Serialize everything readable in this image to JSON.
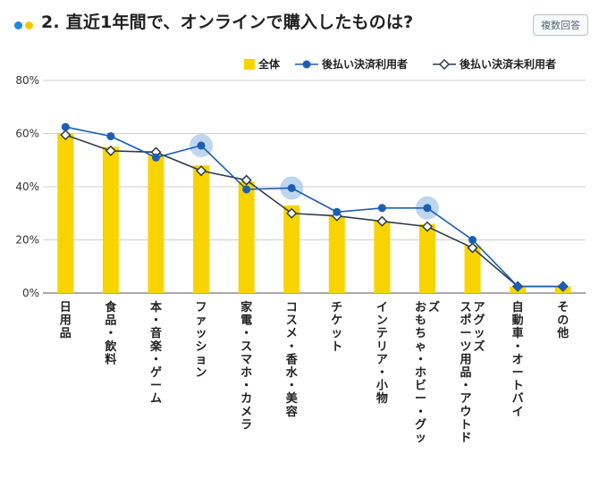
{
  "header": {
    "title": "2. 直近1年間で、オンラインで購入したものは?",
    "badge": "複数回答",
    "dot_colors": [
      "#1a8be0",
      "#f5c900"
    ]
  },
  "chart_data": {
    "type": "bar",
    "categories": [
      "日用品",
      "食品・飲料",
      "本・音楽・ゲーム",
      "ファッション",
      "家電・スマホ・カメラ",
      "コスメ・香水・美容",
      "チケット",
      "インテリア・小物",
      "おもちゃ・ホビー・グッズ",
      "スポーツ用品・アウトドアグッズ",
      "自動車・オートバイ",
      "その他"
    ],
    "ylim": [
      0,
      80
    ],
    "yticks": [
      "0%",
      "20%",
      "40%",
      "60%",
      "80%"
    ],
    "grid": true,
    "legend_position": "top-right",
    "series": [
      {
        "name": "全体",
        "type": "bar",
        "color": "#f7d400",
        "values": [
          60,
          55,
          52,
          48,
          42,
          33,
          29,
          27,
          26,
          18,
          2.5,
          2.5
        ]
      },
      {
        "name": "後払い決済利用者",
        "type": "line",
        "color": "#1a5fb4",
        "values": [
          62.5,
          59,
          51,
          55.5,
          39,
          39.5,
          30.5,
          32,
          32,
          20,
          2.5,
          2.5
        ],
        "highlighted": [
          3,
          5,
          8
        ]
      },
      {
        "name": "後払い決済未利用者",
        "type": "line",
        "color": "#2f3b4a",
        "values": [
          59.5,
          53.5,
          53,
          46,
          42.5,
          30,
          29,
          27,
          25,
          17,
          2.5,
          2.5
        ]
      }
    ]
  }
}
